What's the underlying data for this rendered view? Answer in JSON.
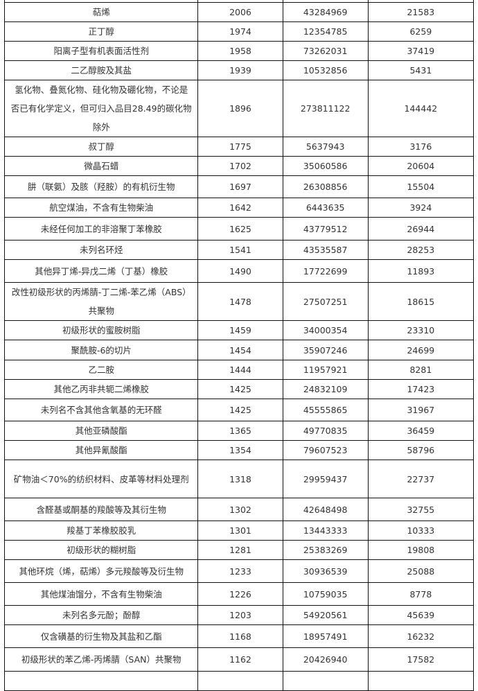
{
  "table": {
    "rows": [
      {
        "name": "萜烯",
        "count": "2006",
        "amount": "43284969",
        "quantity": "21583"
      },
      {
        "name": "正丁醇",
        "count": "1974",
        "amount": "12354785",
        "quantity": "6259"
      },
      {
        "name": "阳离子型有机表面活性剂",
        "count": "1958",
        "amount": "73262031",
        "quantity": "37419"
      },
      {
        "name": "二乙醇胺及其盐",
        "count": "1939",
        "amount": "10532856",
        "quantity": "5431"
      },
      {
        "name": "氢化物、叠氮化物、硅化物及硼化物，不论是否已有化学定义，但可归入品目28.49的碳化物除外",
        "count": "1896",
        "amount": "273811122",
        "quantity": "144442"
      },
      {
        "name": "叔丁醇",
        "count": "1775",
        "amount": "5637943",
        "quantity": "3176"
      },
      {
        "name": "微晶石蜡",
        "count": "1702",
        "amount": "35060586",
        "quantity": "20604"
      },
      {
        "name": "肼（联氨）及胲（羟胺）的有机衍生物",
        "count": "1697",
        "amount": "26308856",
        "quantity": "15504"
      },
      {
        "name": "航空煤油，不含有生物柴油",
        "count": "1642",
        "amount": "6443635",
        "quantity": "3924"
      },
      {
        "name": "未经任何加工的非溶聚丁苯橡胶",
        "count": "1625",
        "amount": "43779512",
        "quantity": "26944"
      },
      {
        "name": "未列名环烃",
        "count": "1541",
        "amount": "43535587",
        "quantity": "28253"
      },
      {
        "name": "其他异丁烯-异戊二烯（丁基）橡胶",
        "count": "1490",
        "amount": "17722699",
        "quantity": "11893"
      },
      {
        "name": "改性初级形状的丙烯腈-丁二烯-苯乙烯（ABS）共聚物",
        "count": "1478",
        "amount": "27507251",
        "quantity": "18615"
      },
      {
        "name": "初级形状的蜜胺树脂",
        "count": "1459",
        "amount": "34000354",
        "quantity": "23310"
      },
      {
        "name": "聚酰胺-6的切片",
        "count": "1454",
        "amount": "35907246",
        "quantity": "24699"
      },
      {
        "name": "乙二胺",
        "count": "1444",
        "amount": "11957921",
        "quantity": "8281"
      },
      {
        "name": "其他乙丙非共轭二烯橡胶",
        "count": "1425",
        "amount": "24832109",
        "quantity": "17423"
      },
      {
        "name": "未列名不含其他含氧基的无环醛",
        "count": "1425",
        "amount": "45555865",
        "quantity": "31967"
      },
      {
        "name": "其他亚磷酸酯",
        "count": "1365",
        "amount": "49770835",
        "quantity": "36459"
      },
      {
        "name": "其他异氰酸酯",
        "count": "1354",
        "amount": "79607523",
        "quantity": "58796"
      },
      {
        "name": "矿物油＜70%的纺织材料、皮革等材料处理剂",
        "count": "1318",
        "amount": "29959437",
        "quantity": "22737"
      },
      {
        "name": "含醛基或酮基的羧酸等及其衍生物",
        "count": "1302",
        "amount": "42648498",
        "quantity": "32755"
      },
      {
        "name": "羧基丁苯橡胶胶乳",
        "count": "1301",
        "amount": "13443333",
        "quantity": "10333"
      },
      {
        "name": "初级形状的糊树脂",
        "count": "1281",
        "amount": "25383269",
        "quantity": "19808"
      },
      {
        "name": "其他环烷（烯，萜烯）多元羧酸等及衍生物",
        "count": "1233",
        "amount": "30936539",
        "quantity": "25088"
      },
      {
        "name": "其他煤油馏分，不含有生物柴油",
        "count": "1226",
        "amount": "10759035",
        "quantity": "8778"
      },
      {
        "name": "未列名多元酚；酚醇",
        "count": "1203",
        "amount": "54920561",
        "quantity": "45639"
      },
      {
        "name": "仅含磺基的衍生物及其盐和乙酯",
        "count": "1168",
        "amount": "18957491",
        "quantity": "16232"
      },
      {
        "name": "初级形状的苯乙烯-丙烯腈（SAN）共聚物",
        "count": "1162",
        "amount": "20426940",
        "quantity": "17582"
      }
    ]
  }
}
